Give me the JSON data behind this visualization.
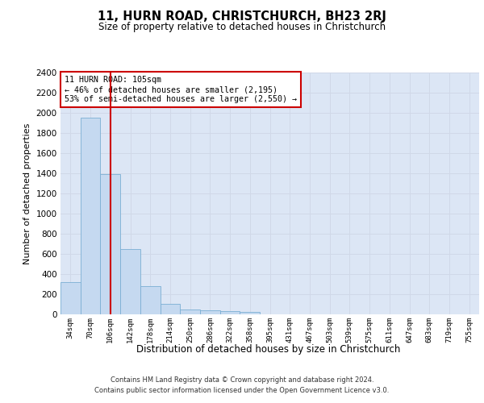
{
  "title": "11, HURN ROAD, CHRISTCHURCH, BH23 2RJ",
  "subtitle": "Size of property relative to detached houses in Christchurch",
  "xlabel": "Distribution of detached houses by size in Christchurch",
  "ylabel": "Number of detached properties",
  "bin_labels": [
    "34sqm",
    "70sqm",
    "106sqm",
    "142sqm",
    "178sqm",
    "214sqm",
    "250sqm",
    "286sqm",
    "322sqm",
    "358sqm",
    "395sqm",
    "431sqm",
    "467sqm",
    "503sqm",
    "539sqm",
    "575sqm",
    "611sqm",
    "647sqm",
    "683sqm",
    "719sqm",
    "755sqm"
  ],
  "bar_values": [
    320,
    1950,
    1390,
    650,
    280,
    105,
    47,
    43,
    32,
    22,
    0,
    0,
    0,
    0,
    0,
    0,
    0,
    0,
    0,
    0,
    0
  ],
  "bar_color": "#c5d9f0",
  "bar_edgecolor": "#7bafd4",
  "vline_bin": 2,
  "vline_color": "#cc0000",
  "annotation_line1": "11 HURN ROAD: 105sqm",
  "annotation_line2": "← 46% of detached houses are smaller (2,195)",
  "annotation_line3": "53% of semi-detached houses are larger (2,550) →",
  "annotation_box_color": "#cc0000",
  "ylim": [
    0,
    2400
  ],
  "yticks": [
    0,
    200,
    400,
    600,
    800,
    1000,
    1200,
    1400,
    1600,
    1800,
    2000,
    2200,
    2400
  ],
  "grid_color": "#d0d8e8",
  "background_color": "#dce6f5",
  "footer_line1": "Contains HM Land Registry data © Crown copyright and database right 2024.",
  "footer_line2": "Contains public sector information licensed under the Open Government Licence v3.0."
}
